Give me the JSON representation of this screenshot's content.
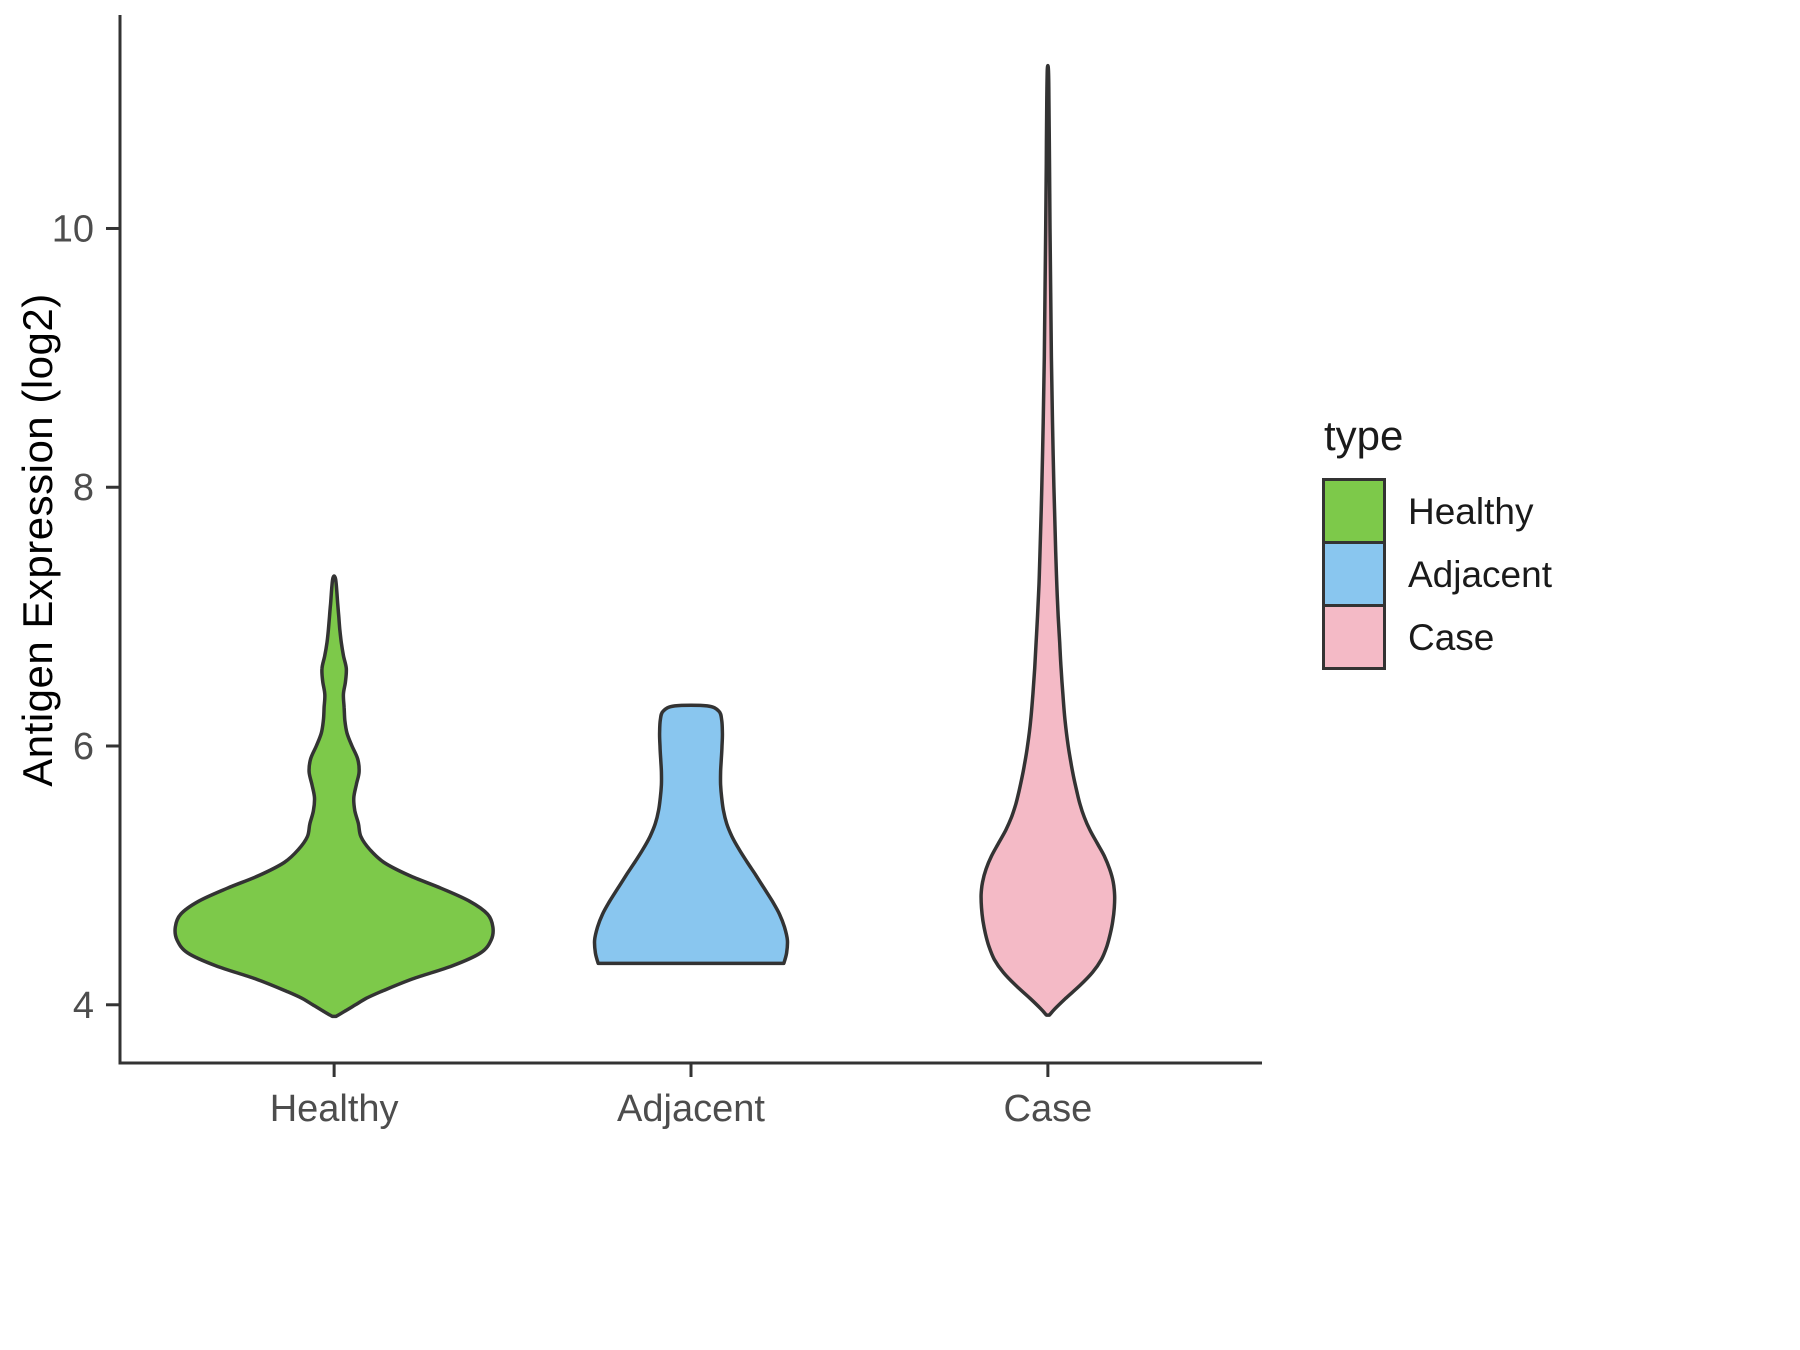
{
  "chart_data": {
    "type": "violin",
    "title": "",
    "xlabel": "",
    "ylabel": "Antigen Expression (log2)",
    "categories": [
      "Healthy",
      "Adjacent",
      "Case"
    ],
    "yticks": [
      4,
      6,
      8,
      10
    ],
    "ylim": [
      3.55,
      11.65
    ],
    "grid": false,
    "legend": {
      "title": "type",
      "position": "right",
      "items": [
        {
          "label": "Healthy",
          "color": "#7DC94A"
        },
        {
          "label": "Adjacent",
          "color": "#89C6EF"
        },
        {
          "label": "Case",
          "color": "#F4BAC6"
        }
      ]
    },
    "series": [
      {
        "name": "Healthy",
        "color": "#7DC94A",
        "min": 3.91,
        "max": 7.29,
        "peak_value": 4.6,
        "profile": [
          [
            3.91,
            0.005
          ],
          [
            3.95,
            0.03
          ],
          [
            4.0,
            0.06
          ],
          [
            4.05,
            0.09
          ],
          [
            4.1,
            0.13
          ],
          [
            4.2,
            0.22
          ],
          [
            4.3,
            0.33
          ],
          [
            4.4,
            0.41
          ],
          [
            4.5,
            0.44
          ],
          [
            4.6,
            0.445
          ],
          [
            4.7,
            0.43
          ],
          [
            4.8,
            0.38
          ],
          [
            4.9,
            0.3
          ],
          [
            5.0,
            0.21
          ],
          [
            5.1,
            0.14
          ],
          [
            5.2,
            0.1
          ],
          [
            5.3,
            0.075
          ],
          [
            5.4,
            0.068
          ],
          [
            5.5,
            0.058
          ],
          [
            5.6,
            0.055
          ],
          [
            5.7,
            0.062
          ],
          [
            5.8,
            0.07
          ],
          [
            5.9,
            0.066
          ],
          [
            6.0,
            0.05
          ],
          [
            6.1,
            0.036
          ],
          [
            6.2,
            0.03
          ],
          [
            6.3,
            0.028
          ],
          [
            6.4,
            0.026
          ],
          [
            6.5,
            0.032
          ],
          [
            6.6,
            0.034
          ],
          [
            6.7,
            0.026
          ],
          [
            6.8,
            0.02
          ],
          [
            6.9,
            0.016
          ],
          [
            7.0,
            0.013
          ],
          [
            7.1,
            0.01
          ],
          [
            7.29,
            0.004
          ]
        ]
      },
      {
        "name": "Adjacent",
        "color": "#89C6EF",
        "min": 4.32,
        "max": 6.31,
        "peak_value": 4.5,
        "profile": [
          [
            4.32,
            0.26
          ],
          [
            4.4,
            0.268
          ],
          [
            4.5,
            0.27
          ],
          [
            4.6,
            0.262
          ],
          [
            4.7,
            0.248
          ],
          [
            4.8,
            0.228
          ],
          [
            4.9,
            0.205
          ],
          [
            5.0,
            0.182
          ],
          [
            5.1,
            0.158
          ],
          [
            5.2,
            0.135
          ],
          [
            5.3,
            0.115
          ],
          [
            5.4,
            0.1
          ],
          [
            5.5,
            0.091
          ],
          [
            5.6,
            0.086
          ],
          [
            5.7,
            0.083
          ],
          [
            5.8,
            0.083
          ],
          [
            5.9,
            0.085
          ],
          [
            6.0,
            0.087
          ],
          [
            6.1,
            0.088
          ],
          [
            6.2,
            0.086
          ],
          [
            6.27,
            0.078
          ],
          [
            6.31,
            0.045
          ]
        ]
      },
      {
        "name": "Case",
        "color": "#F4BAC6",
        "min": 3.92,
        "max": 11.23,
        "peak_value": 4.85,
        "profile": [
          [
            3.92,
            0.004
          ],
          [
            3.97,
            0.02
          ],
          [
            4.05,
            0.05
          ],
          [
            4.15,
            0.09
          ],
          [
            4.25,
            0.125
          ],
          [
            4.35,
            0.15
          ],
          [
            4.45,
            0.165
          ],
          [
            4.55,
            0.175
          ],
          [
            4.65,
            0.182
          ],
          [
            4.75,
            0.186
          ],
          [
            4.85,
            0.187
          ],
          [
            4.95,
            0.183
          ],
          [
            5.05,
            0.173
          ],
          [
            5.15,
            0.158
          ],
          [
            5.25,
            0.138
          ],
          [
            5.35,
            0.118
          ],
          [
            5.45,
            0.102
          ],
          [
            5.55,
            0.09
          ],
          [
            5.65,
            0.081
          ],
          [
            5.75,
            0.073
          ],
          [
            5.85,
            0.066
          ],
          [
            6.0,
            0.057
          ],
          [
            6.2,
            0.048
          ],
          [
            6.4,
            0.042
          ],
          [
            6.6,
            0.037
          ],
          [
            6.8,
            0.033
          ],
          [
            7.0,
            0.029
          ],
          [
            7.25,
            0.025
          ],
          [
            7.5,
            0.022
          ],
          [
            8.0,
            0.017
          ],
          [
            8.5,
            0.013
          ],
          [
            9.0,
            0.01
          ],
          [
            9.5,
            0.008
          ],
          [
            10.0,
            0.006
          ],
          [
            10.5,
            0.0045
          ],
          [
            11.0,
            0.003
          ],
          [
            11.23,
            0.0015
          ]
        ]
      }
    ]
  },
  "styles": {
    "background": "#FFFFFF",
    "outline": "#333333",
    "axis_color": "#333333",
    "tick_text": "#4D4D4D",
    "axis_title_text": "#000000",
    "legend_text": "#1A1A1A"
  }
}
